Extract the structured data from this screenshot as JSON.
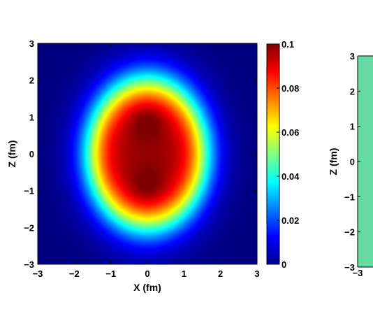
{
  "chart_data": [
    {
      "type": "heatmap",
      "title": "",
      "xlabel": "X (fm)",
      "ylabel": "Z (fm)",
      "xlim": [
        -3,
        3
      ],
      "ylim": [
        3,
        -3
      ],
      "xticks": [
        "−3",
        "−2",
        "−1",
        "0",
        "1",
        "2",
        "3"
      ],
      "yticks": [
        "−3",
        "−2",
        "−1",
        "0",
        "1",
        "2",
        "3"
      ],
      "grid": false,
      "colormap": "jet",
      "colorbar": {
        "range": [
          0,
          0.1
        ],
        "ticks": [
          "0",
          "0.02",
          "0.04",
          "0.06",
          "0.08",
          "0.1"
        ]
      },
      "density_peaks": [
        {
          "x": 0,
          "z": -0.9,
          "value": 0.1
        },
        {
          "x": 0,
          "z": 0.9,
          "value": 0.1
        }
      ]
    },
    {
      "type": "heatmap",
      "title": "",
      "xlabel": "",
      "ylabel": "Z (fm)",
      "ylim": [
        3,
        -3
      ],
      "xticks": [
        "−3"
      ],
      "yticks": [
        "−3",
        "−2",
        "−1",
        "0",
        "1",
        "2",
        "3"
      ],
      "partially_visible": true
    }
  ]
}
